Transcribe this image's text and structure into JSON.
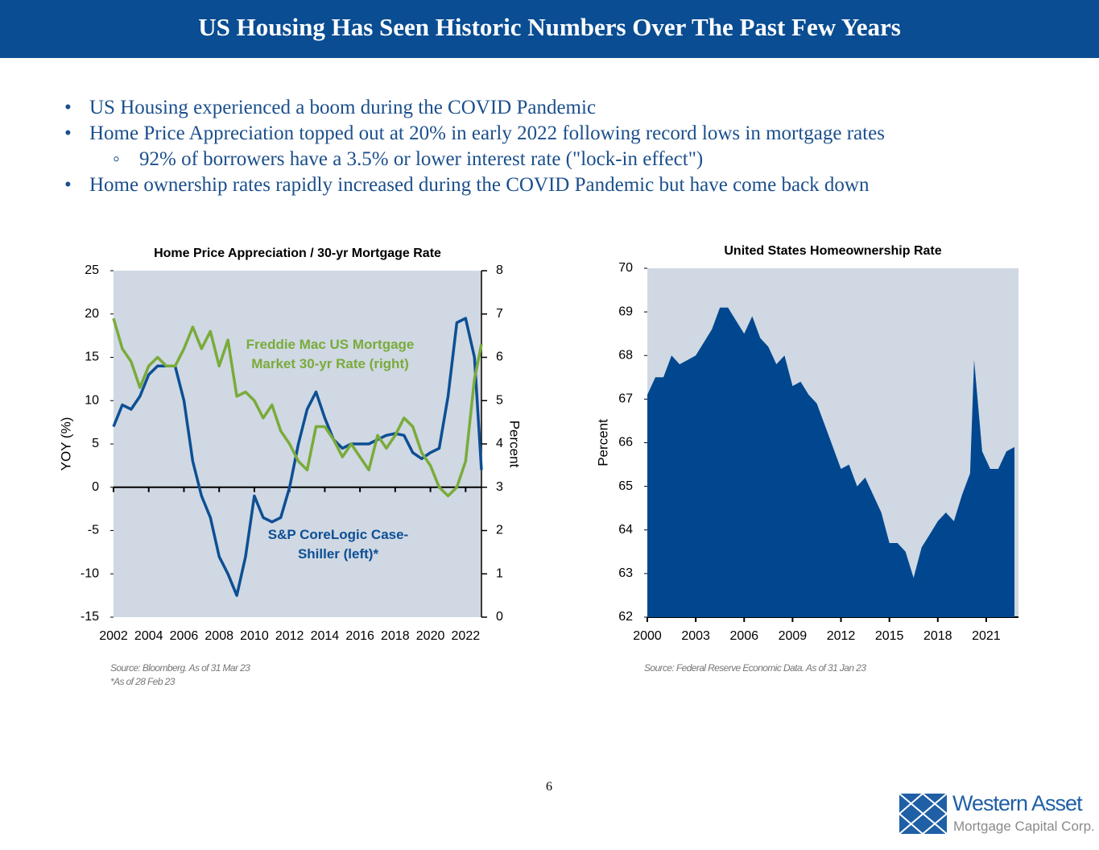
{
  "header": {
    "title": "US Housing Has Seen Historic Numbers Over The Past Few Years"
  },
  "bullets": [
    {
      "level": 1,
      "text": "US Housing experienced a boom during the COVID Pandemic"
    },
    {
      "level": 1,
      "text": "Home Price Appreciation topped out at 20% in early 2022 following record lows in mortgage rates"
    },
    {
      "level": 2,
      "text": "92% of borrowers have a 3.5% or lower interest rate (\"lock-in effect\")"
    },
    {
      "level": 1,
      "text": "Home ownership rates rapidly increased during the COVID Pandemic but have come back down"
    }
  ],
  "chart_data": [
    {
      "type": "line",
      "title": "Home Price Appreciation / 30-yr Mortgage Rate",
      "ylabel": "YOY (%)",
      "y2label": "Percent",
      "x": [
        2002,
        2002.5,
        2003,
        2003.5,
        2004,
        2004.5,
        2005,
        2005.5,
        2006,
        2006.5,
        2007,
        2007.5,
        2008,
        2008.5,
        2009,
        2009.5,
        2010,
        2010.5,
        2011,
        2011.5,
        2012,
        2012.5,
        2013,
        2013.5,
        2014,
        2014.5,
        2015,
        2015.5,
        2016,
        2016.5,
        2017,
        2017.5,
        2018,
        2018.5,
        2019,
        2019.5,
        2020,
        2020.5,
        2021,
        2021.5,
        2022,
        2022.5,
        2022.9
      ],
      "series": [
        {
          "name": "S&P CoreLogic Case-Shiller (left)*",
          "color": "#0d4f94",
          "axis": "y",
          "values": [
            7,
            9.5,
            9,
            10.5,
            13,
            14,
            14,
            14,
            10,
            3,
            -1,
            -3.5,
            -8,
            -10,
            -12.5,
            -8,
            -1,
            -3.5,
            -4,
            -3.5,
            0,
            5,
            9,
            11,
            8,
            5.5,
            4.5,
            5,
            5,
            5,
            5.5,
            6,
            6.2,
            6,
            4,
            3.3,
            4,
            4.5,
            10.5,
            19,
            19.5,
            15,
            2
          ]
        },
        {
          "name": "Freddie Mac US Mortgage Market 30-yr Rate (right)",
          "color": "#7aab3a",
          "axis": "y2",
          "values": [
            6.9,
            6.2,
            5.9,
            5.3,
            5.8,
            6.0,
            5.8,
            5.8,
            6.2,
            6.7,
            6.2,
            6.6,
            5.8,
            6.4,
            5.1,
            5.2,
            5.0,
            4.6,
            4.9,
            4.3,
            4.0,
            3.6,
            3.4,
            4.4,
            4.4,
            4.1,
            3.7,
            4.0,
            3.7,
            3.4,
            4.2,
            3.9,
            4.2,
            4.6,
            4.4,
            3.8,
            3.5,
            3.0,
            2.8,
            3.0,
            3.6,
            5.5,
            6.3
          ]
        }
      ],
      "xlim": [
        2002,
        2022.9
      ],
      "xticks": [
        2002,
        2004,
        2006,
        2008,
        2010,
        2012,
        2014,
        2016,
        2018,
        2020,
        2022
      ],
      "ylim": [
        -15,
        25
      ],
      "yticks": [
        -15,
        -10,
        -5,
        0,
        5,
        10,
        15,
        20,
        25
      ],
      "y2lim": [
        0,
        8
      ],
      "y2ticks": [
        0,
        1,
        2,
        3,
        4,
        5,
        6,
        7,
        8
      ],
      "source": "Source: Bloomberg. As of 31 Mar 23",
      "note": "*As of 28 Feb 23"
    },
    {
      "type": "area",
      "title": "United States Homeownership Rate",
      "ylabel": "Percent",
      "color": "#00478f",
      "x": [
        2000,
        2000.5,
        2001,
        2001.5,
        2002,
        2002.5,
        2003,
        2003.5,
        2004,
        2004.5,
        2005,
        2005.5,
        2006,
        2006.5,
        2007,
        2007.5,
        2008,
        2008.5,
        2009,
        2009.5,
        2010,
        2010.5,
        2011,
        2011.5,
        2012,
        2012.5,
        2013,
        2013.5,
        2014,
        2014.5,
        2015,
        2015.5,
        2016,
        2016.5,
        2017,
        2017.5,
        2018,
        2018.5,
        2019,
        2019.5,
        2020,
        2020.25,
        2020.75,
        2021.25,
        2021.75,
        2022.25,
        2022.75
      ],
      "values": [
        67.1,
        67.5,
        67.5,
        68.0,
        67.8,
        67.9,
        68.0,
        68.3,
        68.6,
        69.1,
        69.1,
        68.8,
        68.5,
        68.9,
        68.4,
        68.2,
        67.8,
        68.0,
        67.3,
        67.4,
        67.1,
        66.9,
        66.4,
        65.9,
        65.4,
        65.5,
        65.0,
        65.2,
        64.8,
        64.4,
        63.7,
        63.7,
        63.5,
        62.9,
        63.6,
        63.9,
        64.2,
        64.4,
        64.2,
        64.8,
        65.3,
        67.9,
        65.8,
        65.4,
        65.4,
        65.8,
        65.9
      ],
      "xlim": [
        2000,
        2023
      ],
      "xticks": [
        2000,
        2003,
        2006,
        2009,
        2012,
        2015,
        2018,
        2021
      ],
      "ylim": [
        62,
        70
      ],
      "yticks": [
        62,
        63,
        64,
        65,
        66,
        67,
        68,
        69,
        70
      ],
      "source": "Source: Federal Reserve Economic Data. As of 31 Jan 23"
    }
  ],
  "footer": {
    "page": "6",
    "logo_name": "Western Asset",
    "logo_sub": "Mortgage Capital Corp."
  }
}
